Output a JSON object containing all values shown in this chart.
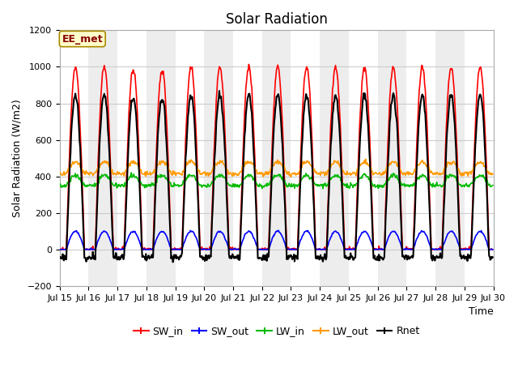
{
  "title": "Solar Radiation",
  "xlabel": "Time",
  "ylabel": "Solar Radiation (W/m2)",
  "ylim": [
    -200,
    1200
  ],
  "yticks": [
    -200,
    0,
    200,
    400,
    600,
    800,
    1000,
    1200
  ],
  "start_day": 15,
  "end_day": 30,
  "n_days": 15,
  "annotation_text": "EE_met",
  "line_colors": {
    "SW_in": "#ff0000",
    "SW_out": "#0000ff",
    "LW_in": "#00bb00",
    "LW_out": "#ff9900",
    "Rnet": "#000000"
  },
  "line_widths": {
    "SW_in": 1.2,
    "SW_out": 1.2,
    "LW_in": 1.2,
    "LW_out": 1.2,
    "Rnet": 1.5
  },
  "background_color": "#ffffff",
  "grid_color": "#cccccc",
  "band_color": "#dddddd",
  "band_alpha": 0.5,
  "legend_fontsize": 9,
  "title_fontsize": 12,
  "tick_fontsize": 8
}
